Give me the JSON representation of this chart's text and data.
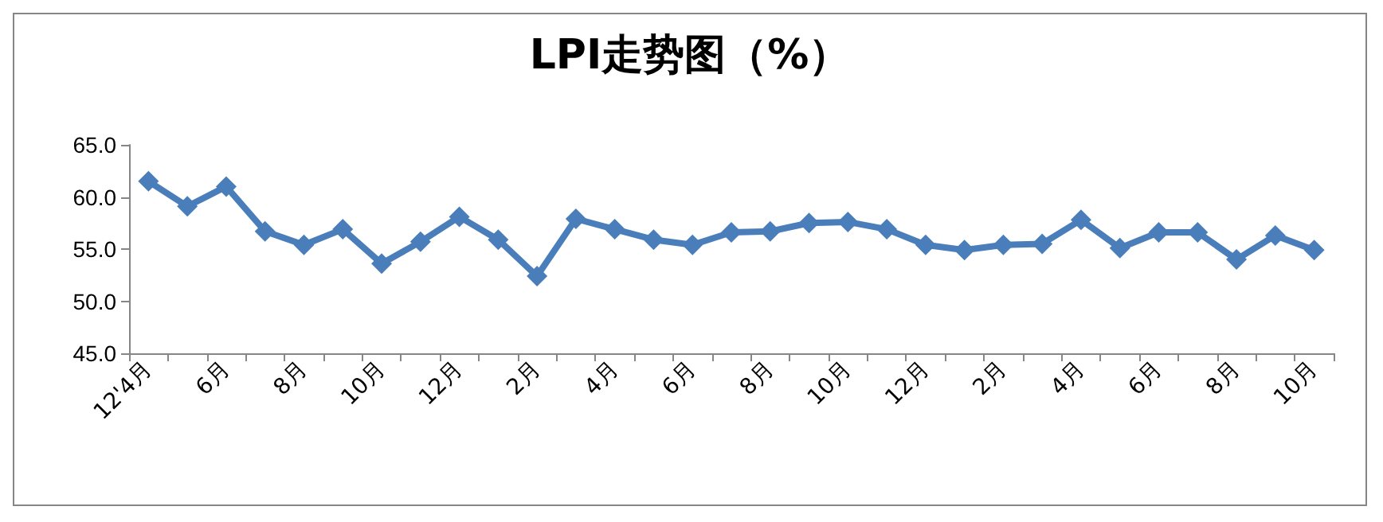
{
  "chart_data": {
    "type": "line",
    "title": "LPI走势图（%）",
    "categories": [
      "12'4月",
      null,
      "6月",
      null,
      "8月",
      null,
      "10月",
      null,
      "12月",
      null,
      "2月",
      null,
      "4月",
      null,
      "6月",
      null,
      "8月",
      null,
      "10月",
      null,
      "12月",
      null,
      "2月",
      null,
      "4月",
      null,
      "6月",
      null,
      "8月",
      null,
      "10月"
    ],
    "series": [
      {
        "color": "#4a7ebb",
        "values": [
          61.5,
          59.1,
          61.0,
          56.7,
          55.4,
          56.9,
          53.6,
          55.7,
          58.1,
          55.9,
          52.4,
          57.9,
          56.9,
          55.9,
          55.4,
          56.6,
          56.7,
          57.5,
          57.6,
          56.9,
          55.4,
          54.9,
          55.4,
          55.5,
          57.8,
          55.1,
          56.6,
          56.6,
          54.0,
          56.3,
          54.9
        ]
      }
    ],
    "ylim": [
      45,
      65
    ],
    "yticks": [
      {
        "value": 45,
        "label": "45.0"
      },
      {
        "value": 50,
        "label": "50.0"
      },
      {
        "value": 55,
        "label": "55.0"
      },
      {
        "value": 60,
        "label": "60.0"
      },
      {
        "value": 65,
        "label": "65.0"
      }
    ],
    "grid": false,
    "marker": "diamond",
    "line_style": "solid"
  }
}
